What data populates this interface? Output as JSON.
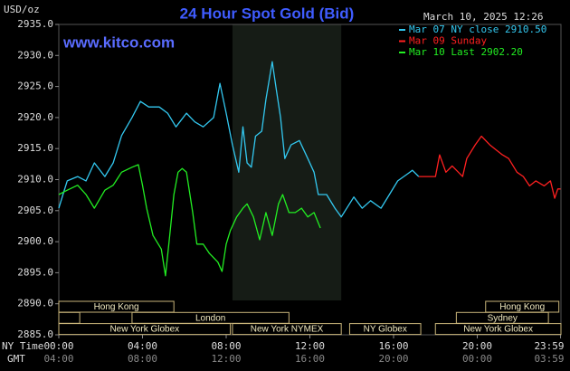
{
  "chart_data": {
    "type": "line",
    "title": "24 Hour Spot Gold (Bid)",
    "timestamp": "March 10, 2025 12:26",
    "watermark": "www.kitco.com",
    "y_unit": "USD/oz",
    "x_row_labels": [
      "NY Time",
      "GMT"
    ],
    "xlim": [
      0,
      24
    ],
    "ylim": [
      2885,
      2935
    ],
    "yticks": [
      {
        "value": 2885,
        "label": "2885.0"
      },
      {
        "value": 2890,
        "label": "2890.0"
      },
      {
        "value": 2895,
        "label": "2895.0"
      },
      {
        "value": 2900,
        "label": "2900.0"
      },
      {
        "value": 2905,
        "label": "2905.0"
      },
      {
        "value": 2910,
        "label": "2910.0"
      },
      {
        "value": 2915,
        "label": "2915.0"
      },
      {
        "value": 2920,
        "label": "2920.0"
      },
      {
        "value": 2925,
        "label": "2925.0"
      },
      {
        "value": 2930,
        "label": "2930.0"
      },
      {
        "value": 2935,
        "label": "2935.0"
      }
    ],
    "xticks": [
      {
        "value": 0,
        "label": "00:00"
      },
      {
        "value": 4,
        "label": "04:00"
      },
      {
        "value": 8,
        "label": "08:00"
      },
      {
        "value": 12,
        "label": "12:00"
      },
      {
        "value": 16,
        "label": "16:00"
      },
      {
        "value": 20,
        "label": "20:00"
      },
      {
        "value": 23.98,
        "label": "23:59"
      }
    ],
    "gmt_tick_labels": [
      "04:00",
      "08:00",
      "12:00",
      "16:00",
      "20:00",
      "00:00",
      "03:59"
    ],
    "series": [
      {
        "name": "Mar 07 NY close 2910.50",
        "color": "#33c8f0",
        "x": [
          0,
          0.2,
          0.4,
          0.9,
          1.3,
          1.7,
          2.2,
          2.6,
          3.0,
          3.5,
          3.9,
          4.3,
          4.8,
          5.2,
          5.6,
          6.1,
          6.5,
          6.9,
          7.4,
          7.7,
          8.0,
          8.3,
          8.6,
          8.8,
          9.0,
          9.2,
          9.4,
          9.7,
          9.9,
          10.2,
          10.4,
          10.6,
          10.8,
          11.1,
          11.5,
          11.9,
          12.2,
          12.4,
          12.8,
          13.2,
          13.5,
          14.1,
          14.5,
          14.9,
          15.4,
          15.8,
          16.2,
          16.7,
          16.9,
          17.2
        ],
        "values": [
          2905.4,
          2907.6,
          2909.8,
          2910.5,
          2909.8,
          2912.7,
          2910.5,
          2912.7,
          2917.1,
          2920,
          2922.6,
          2921.7,
          2921.7,
          2920.7,
          2918.5,
          2920.7,
          2919.3,
          2918.5,
          2920,
          2925.5,
          2920.7,
          2915.6,
          2911.2,
          2918.5,
          2912.7,
          2912,
          2917,
          2917.8,
          2922.9,
          2929,
          2924.4,
          2920,
          2913.4,
          2915.6,
          2916.3,
          2913.4,
          2911.2,
          2907.6,
          2907.6,
          2905.4,
          2904,
          2907.2,
          2905.4,
          2906.6,
          2905.4,
          2907.6,
          2909.8,
          2911,
          2911.5,
          2910.5
        ]
      },
      {
        "name": "Mar 09 Sunday",
        "color": "#ff2020",
        "x": [
          17.2,
          18.0,
          18.2,
          18.5,
          18.8,
          19.3,
          19.5,
          19.9,
          20.2,
          20.6,
          20.9,
          21.2,
          21.5,
          21.9,
          22.2,
          22.5,
          22.8,
          23.2,
          23.5,
          23.7,
          23.85,
          23.98
        ],
        "values": [
          2910.5,
          2910.5,
          2914,
          2911.2,
          2912.2,
          2910.5,
          2913.4,
          2915.6,
          2917,
          2915.6,
          2914.8,
          2914,
          2913.4,
          2911.2,
          2910.5,
          2909,
          2909.8,
          2909,
          2909.8,
          2907,
          2908.5,
          2908.5
        ]
      },
      {
        "name": "Mar 10 Last 2902.20",
        "color": "#22ee22",
        "x": [
          0,
          0.4,
          0.9,
          1.3,
          1.7,
          2.2,
          2.6,
          3.0,
          3.5,
          3.8,
          4.0,
          4.2,
          4.5,
          4.9,
          5.1,
          5.3,
          5.5,
          5.7,
          5.9,
          6.1,
          6.4,
          6.6,
          6.9,
          7.2,
          7.6,
          7.8,
          8.0,
          8.2,
          8.5,
          8.8,
          9.0,
          9.3,
          9.6,
          9.9,
          10.2,
          10.5,
          10.7,
          11.0,
          11.3,
          11.6,
          11.9,
          12.2,
          12.5
        ],
        "values": [
          2907.6,
          2908.3,
          2909.1,
          2907.6,
          2905.4,
          2908.3,
          2909.1,
          2911.2,
          2912,
          2912.4,
          2909.1,
          2905.4,
          2901,
          2898.8,
          2894.5,
          2901,
          2907.6,
          2911.2,
          2911.8,
          2911.2,
          2904.7,
          2899.6,
          2899.6,
          2898.1,
          2896.7,
          2895.2,
          2899.6,
          2901.8,
          2904,
          2905.4,
          2906.1,
          2904,
          2900.3,
          2904.7,
          2901,
          2906.1,
          2907.6,
          2904.7,
          2904.7,
          2905.4,
          2904,
          2904.7,
          2902.2
        ]
      }
    ],
    "sessions": [
      {
        "name": "Hong Kong",
        "row": 0,
        "start": 0,
        "end": 5.5
      },
      {
        "name": "Hong Kong",
        "row": 0,
        "start": 20.4,
        "end": 23.9
      },
      {
        "name": null,
        "row": 1,
        "start": 0,
        "end": 1
      },
      {
        "name": "London",
        "row": 1,
        "start": 3.5,
        "end": 11.0
      },
      {
        "name": "Sydney",
        "row": 1,
        "start": 19.0,
        "end": 23.4
      },
      {
        "name": "New York Globex",
        "row": 2,
        "start": 0,
        "end": 8.2
      },
      {
        "name": "New York NYMEX",
        "row": 2,
        "start": 8.3,
        "end": 13.5,
        "shaded": true
      },
      {
        "name": "NY Globex",
        "row": 2,
        "start": 13.9,
        "end": 17.3
      },
      {
        "name": "New York Globex",
        "row": 2,
        "start": 18.0,
        "end": 24
      }
    ]
  }
}
